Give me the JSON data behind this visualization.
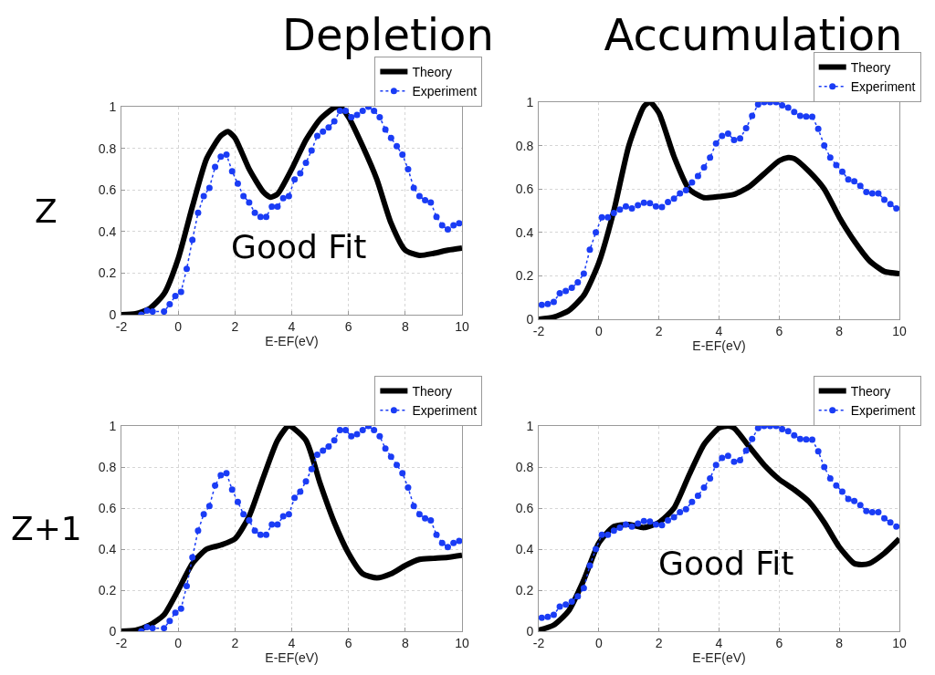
{
  "chart_data": [
    {
      "type": "line",
      "title": "Depletion",
      "ylabel": "Z",
      "xlabel": "E-EF(eV)",
      "annotations": [
        "Good Fit"
      ],
      "xlim": [
        -2,
        10
      ],
      "xticks": [
        -2,
        0,
        2,
        4,
        6,
        8,
        10
      ],
      "ylim": [
        0,
        1
      ],
      "yticks": [
        0,
        0.2,
        0.4,
        0.6,
        0.8,
        1
      ],
      "grid": true,
      "legend": "top right",
      "series": [
        {
          "name": "Theory",
          "color": "#000000",
          "marker": "none",
          "line_style": "solid",
          "x": [
            -2,
            -1.5,
            -1,
            -0.5,
            0,
            0.5,
            1,
            1.5,
            1.75,
            2,
            2.5,
            3,
            3.25,
            3.5,
            4,
            4.5,
            5,
            5.5,
            5.7,
            6,
            6.5,
            7,
            7.5,
            8,
            8.5,
            9,
            9.5,
            10
          ],
          "values": [
            0,
            0.005,
            0.03,
            0.1,
            0.27,
            0.52,
            0.75,
            0.86,
            0.88,
            0.85,
            0.7,
            0.59,
            0.565,
            0.58,
            0.7,
            0.84,
            0.94,
            0.995,
            1,
            0.95,
            0.81,
            0.65,
            0.44,
            0.31,
            0.285,
            0.295,
            0.31,
            0.32
          ]
        },
        {
          "name": "Experiment",
          "color": "#1a3cf5",
          "marker": "circle",
          "line_style": "dotted",
          "x": [
            -1.3,
            -1.1,
            -0.9,
            -0.5,
            -0.3,
            -0.1,
            0.1,
            0.3,
            0.5,
            0.7,
            0.9,
            1.1,
            1.3,
            1.5,
            1.7,
            1.9,
            2.1,
            2.3,
            2.5,
            2.7,
            2.9,
            3.1,
            3.3,
            3.5,
            3.7,
            3.9,
            4.1,
            4.3,
            4.5,
            4.7,
            4.9,
            5.1,
            5.3,
            5.5,
            5.7,
            5.9,
            6.1,
            6.3,
            6.5,
            6.7,
            6.9,
            7.1,
            7.3,
            7.5,
            7.7,
            7.9,
            8.1,
            8.3,
            8.5,
            8.7,
            8.9,
            9.1,
            9.3,
            9.5,
            9.7,
            9.9
          ],
          "values": [
            0,
            0.02,
            0.015,
            0.015,
            0.05,
            0.09,
            0.11,
            0.22,
            0.36,
            0.49,
            0.57,
            0.61,
            0.71,
            0.76,
            0.77,
            0.69,
            0.63,
            0.57,
            0.54,
            0.49,
            0.47,
            0.47,
            0.52,
            0.52,
            0.56,
            0.57,
            0.65,
            0.68,
            0.73,
            0.79,
            0.86,
            0.88,
            0.9,
            0.93,
            0.98,
            0.98,
            0.95,
            0.96,
            0.98,
            1,
            0.98,
            0.95,
            0.89,
            0.85,
            0.81,
            0.77,
            0.7,
            0.61,
            0.57,
            0.55,
            0.54,
            0.47,
            0.43,
            0.41,
            0.43,
            0.44
          ]
        }
      ]
    },
    {
      "type": "line",
      "title": "Accumulation",
      "xlabel": "E-EF(eV)",
      "xlim": [
        -2,
        10
      ],
      "xticks": [
        -2,
        0,
        2,
        4,
        6,
        8,
        10
      ],
      "ylim": [
        0,
        1
      ],
      "yticks": [
        0,
        0.2,
        0.4,
        0.6,
        0.8,
        1
      ],
      "grid": true,
      "legend": "top right",
      "series": [
        {
          "name": "Theory",
          "color": "#000000",
          "marker": "none",
          "line_style": "solid",
          "x": [
            -2,
            -1.5,
            -1,
            -0.5,
            0,
            0.5,
            1,
            1.5,
            1.7,
            2,
            2.5,
            3,
            3.5,
            4,
            4.5,
            5,
            5.5,
            6,
            6.3,
            6.5,
            7,
            7.5,
            8,
            8.5,
            9,
            9.5,
            10
          ],
          "values": [
            0,
            0.01,
            0.04,
            0.11,
            0.26,
            0.5,
            0.8,
            0.98,
            1,
            0.95,
            0.75,
            0.6,
            0.56,
            0.565,
            0.575,
            0.61,
            0.67,
            0.73,
            0.745,
            0.74,
            0.68,
            0.6,
            0.47,
            0.36,
            0.27,
            0.22,
            0.21
          ]
        },
        {
          "name": "Experiment",
          "color": "#1a3cf5",
          "marker": "circle",
          "line_style": "dotted",
          "x": [
            -1.9,
            -1.7,
            -1.5,
            -1.3,
            -1.1,
            -0.9,
            -0.7,
            -0.5,
            -0.3,
            -0.1,
            0.1,
            0.3,
            0.5,
            0.7,
            0.9,
            1.1,
            1.3,
            1.5,
            1.7,
            1.9,
            2.1,
            2.3,
            2.5,
            2.7,
            2.9,
            3.1,
            3.3,
            3.5,
            3.7,
            3.9,
            4.1,
            4.3,
            4.5,
            4.7,
            4.9,
            5.1,
            5.3,
            5.5,
            5.7,
            5.9,
            6.1,
            6.3,
            6.5,
            6.7,
            6.9,
            7.1,
            7.3,
            7.5,
            7.7,
            7.9,
            8.1,
            8.3,
            8.5,
            8.7,
            8.9,
            9.1,
            9.3,
            9.5,
            9.7,
            9.9
          ],
          "values": [
            0.066,
            0.07,
            0.08,
            0.12,
            0.13,
            0.145,
            0.17,
            0.21,
            0.32,
            0.4,
            0.47,
            0.47,
            0.49,
            0.505,
            0.52,
            0.51,
            0.525,
            0.537,
            0.535,
            0.52,
            0.517,
            0.54,
            0.556,
            0.58,
            0.595,
            0.63,
            0.66,
            0.7,
            0.745,
            0.81,
            0.845,
            0.855,
            0.826,
            0.833,
            0.88,
            0.937,
            0.99,
            1,
            1,
            1,
            0.985,
            0.975,
            0.955,
            0.937,
            0.934,
            0.933,
            0.877,
            0.8,
            0.745,
            0.71,
            0.68,
            0.644,
            0.635,
            0.614,
            0.586,
            0.58,
            0.58,
            0.55,
            0.53,
            0.51
          ]
        }
      ]
    },
    {
      "type": "line",
      "ylabel": "Z+1",
      "xlabel": "E-EF(eV)",
      "xlim": [
        -2,
        10
      ],
      "xticks": [
        -2,
        0,
        2,
        4,
        6,
        8,
        10
      ],
      "ylim": [
        0,
        1
      ],
      "yticks": [
        0,
        0.2,
        0.4,
        0.6,
        0.8,
        1
      ],
      "grid": true,
      "legend": "top right",
      "series": [
        {
          "name": "Theory",
          "color": "#000000",
          "marker": "none",
          "line_style": "solid",
          "x": [
            -2,
            -1.5,
            -1,
            -0.5,
            0,
            0.5,
            1,
            1.5,
            2,
            2.5,
            3,
            3.5,
            3.9,
            4.5,
            5,
            5.5,
            6,
            6.5,
            7,
            7.5,
            8,
            8.5,
            9,
            9.5,
            10
          ],
          "values": [
            0,
            0.005,
            0.03,
            0.08,
            0.2,
            0.33,
            0.4,
            0.42,
            0.45,
            0.56,
            0.75,
            0.93,
            1,
            0.93,
            0.72,
            0.53,
            0.38,
            0.28,
            0.26,
            0.28,
            0.32,
            0.35,
            0.355,
            0.36,
            0.37
          ]
        },
        {
          "name": "Experiment",
          "color": "#1a3cf5",
          "marker": "circle",
          "line_style": "dotted",
          "x": [
            -1.3,
            -1.1,
            -0.9,
            -0.5,
            -0.3,
            -0.1,
            0.1,
            0.3,
            0.5,
            0.7,
            0.9,
            1.1,
            1.3,
            1.5,
            1.7,
            1.9,
            2.1,
            2.3,
            2.5,
            2.7,
            2.9,
            3.1,
            3.3,
            3.5,
            3.7,
            3.9,
            4.1,
            4.3,
            4.5,
            4.7,
            4.9,
            5.1,
            5.3,
            5.5,
            5.7,
            5.9,
            6.1,
            6.3,
            6.5,
            6.7,
            6.9,
            7.1,
            7.3,
            7.5,
            7.7,
            7.9,
            8.1,
            8.3,
            8.5,
            8.7,
            8.9,
            9.1,
            9.3,
            9.5,
            9.7,
            9.9
          ],
          "values": [
            0,
            0.02,
            0.015,
            0.015,
            0.05,
            0.09,
            0.11,
            0.22,
            0.36,
            0.49,
            0.57,
            0.61,
            0.71,
            0.76,
            0.77,
            0.69,
            0.63,
            0.57,
            0.54,
            0.49,
            0.47,
            0.47,
            0.52,
            0.52,
            0.56,
            0.57,
            0.65,
            0.68,
            0.73,
            0.79,
            0.86,
            0.88,
            0.9,
            0.93,
            0.98,
            0.98,
            0.95,
            0.96,
            0.98,
            1,
            0.98,
            0.95,
            0.89,
            0.85,
            0.81,
            0.77,
            0.7,
            0.61,
            0.57,
            0.55,
            0.54,
            0.47,
            0.43,
            0.41,
            0.43,
            0.44
          ]
        }
      ]
    },
    {
      "type": "line",
      "xlabel": "E-EF(eV)",
      "annotations": [
        "Good Fit"
      ],
      "xlim": [
        -2,
        10
      ],
      "xticks": [
        -2,
        0,
        2,
        4,
        6,
        8,
        10
      ],
      "ylim": [
        0,
        1
      ],
      "yticks": [
        0,
        0.2,
        0.4,
        0.6,
        0.8,
        1
      ],
      "grid": true,
      "legend": "top right",
      "series": [
        {
          "name": "Theory",
          "color": "#000000",
          "marker": "none",
          "line_style": "solid",
          "x": [
            -2,
            -1.5,
            -1,
            -0.5,
            0,
            0.5,
            1,
            1.5,
            2,
            2.5,
            3,
            3.5,
            4,
            4.3,
            4.5,
            5,
            5.5,
            6,
            6.5,
            7,
            7.5,
            8,
            8.5,
            8.75,
            9,
            9.5,
            10
          ],
          "values": [
            0.005,
            0.03,
            0.1,
            0.25,
            0.43,
            0.51,
            0.52,
            0.505,
            0.53,
            0.6,
            0.76,
            0.91,
            0.99,
            1,
            0.99,
            0.9,
            0.81,
            0.74,
            0.69,
            0.63,
            0.53,
            0.41,
            0.33,
            0.325,
            0.33,
            0.38,
            0.45
          ]
        },
        {
          "name": "Experiment",
          "color": "#1a3cf5",
          "marker": "circle",
          "line_style": "dotted",
          "x": [
            -1.9,
            -1.7,
            -1.5,
            -1.3,
            -1.1,
            -0.9,
            -0.7,
            -0.5,
            -0.3,
            -0.1,
            0.1,
            0.3,
            0.5,
            0.7,
            0.9,
            1.1,
            1.3,
            1.5,
            1.7,
            1.9,
            2.1,
            2.3,
            2.5,
            2.7,
            2.9,
            3.1,
            3.3,
            3.5,
            3.7,
            3.9,
            4.1,
            4.3,
            4.5,
            4.7,
            4.9,
            5.1,
            5.3,
            5.5,
            5.7,
            5.9,
            6.1,
            6.3,
            6.5,
            6.7,
            6.9,
            7.1,
            7.3,
            7.5,
            7.7,
            7.9,
            8.1,
            8.3,
            8.5,
            8.7,
            8.9,
            9.1,
            9.3,
            9.5,
            9.7,
            9.9
          ],
          "values": [
            0.066,
            0.07,
            0.08,
            0.12,
            0.13,
            0.145,
            0.17,
            0.21,
            0.32,
            0.4,
            0.47,
            0.47,
            0.49,
            0.505,
            0.52,
            0.51,
            0.525,
            0.537,
            0.535,
            0.52,
            0.517,
            0.54,
            0.556,
            0.58,
            0.595,
            0.63,
            0.66,
            0.7,
            0.745,
            0.81,
            0.845,
            0.855,
            0.826,
            0.833,
            0.88,
            0.937,
            0.99,
            1,
            1,
            1,
            0.985,
            0.975,
            0.955,
            0.937,
            0.934,
            0.933,
            0.877,
            0.8,
            0.745,
            0.71,
            0.68,
            0.644,
            0.635,
            0.614,
            0.586,
            0.58,
            0.58,
            0.55,
            0.53,
            0.51
          ]
        }
      ]
    }
  ]
}
